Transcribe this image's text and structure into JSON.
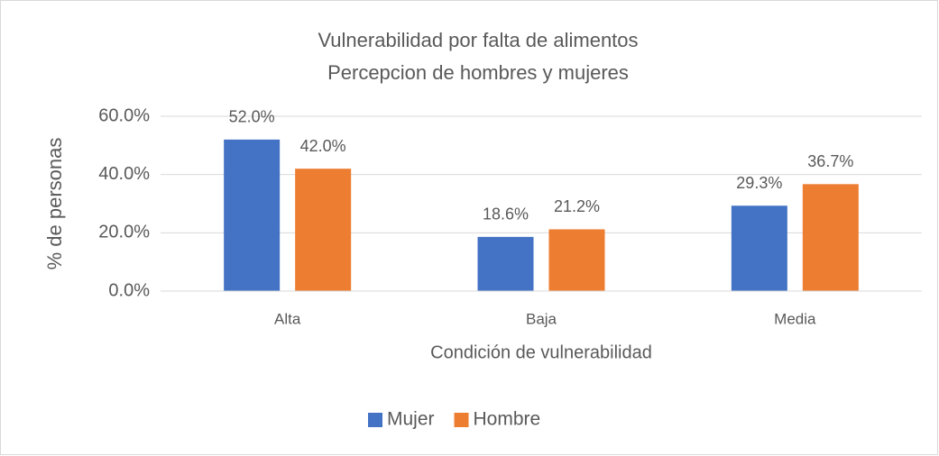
{
  "chart_data": {
    "type": "bar",
    "title": "Vulnerabilidad por falta de alimentos",
    "subtitle": "Percepcion de hombres y mujeres",
    "x_label": "Condición de vulnerabilidad",
    "y_label": "% de personas",
    "categories": [
      "Alta",
      "Baja",
      "Media"
    ],
    "series": [
      {
        "name": "Mujer",
        "color": "#4472c4",
        "values": [
          52.0,
          18.6,
          29.3
        ],
        "value_labels": [
          "52.0%",
          "18.6%",
          "29.3%"
        ]
      },
      {
        "name": "Hombre",
        "color": "#ed7d31",
        "values": [
          42.0,
          21.2,
          36.7
        ],
        "value_labels": [
          "42.0%",
          "21.2%",
          "36.7%"
        ]
      }
    ],
    "ylim": [
      0,
      60
    ],
    "yticks": [
      {
        "value": 0,
        "label": "0.0%"
      },
      {
        "value": 20,
        "label": "20.0%"
      },
      {
        "value": 40,
        "label": "40.0%"
      },
      {
        "value": 60,
        "label": "60.0%"
      }
    ],
    "grid": true,
    "legend": "bottom"
  }
}
